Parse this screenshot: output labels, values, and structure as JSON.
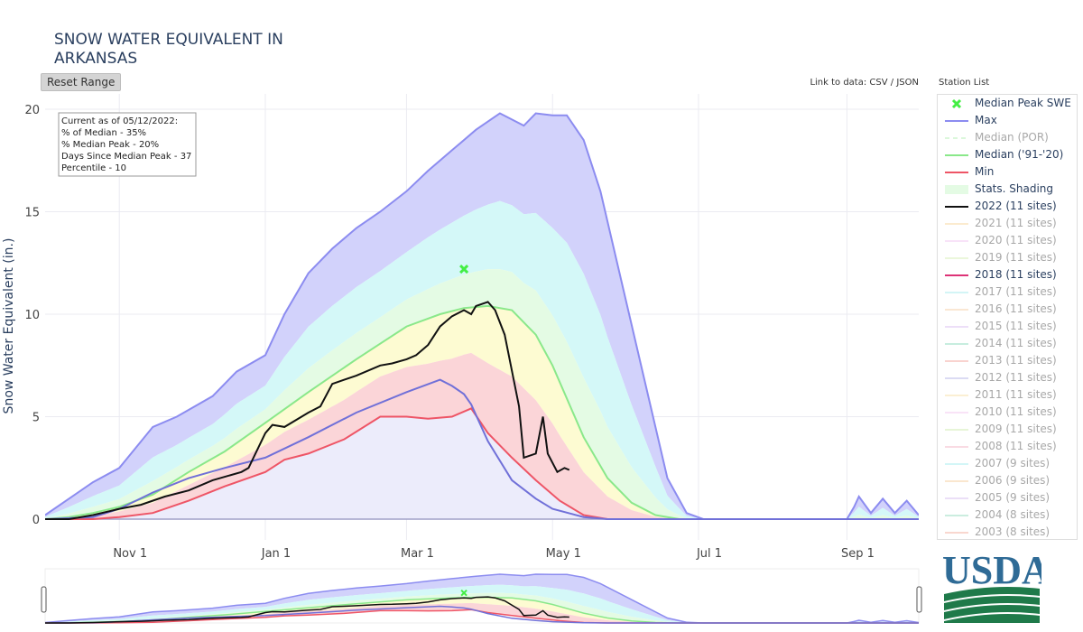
{
  "title": "SNOW WATER EQUIVALENT IN ARKANSAS",
  "reset_label": "Reset Range",
  "link_prefix": "Link to data:",
  "link_csv": "CSV",
  "link_sep": "/",
  "link_json": "JSON",
  "station_list_label": "Station List",
  "logo_text": "USDA",
  "colors": {
    "max": "#8c8cf0",
    "max_fill": "#d2d2fb",
    "median": "#8ae88a",
    "min": "#ee5566",
    "y2022": "#111111",
    "y2018": "#dd3377",
    "peak_marker": "#44ee44",
    "usda_blue": "#2f6b96",
    "usda_green": "#1f7a4a"
  },
  "info_box": [
    "Current as of 05/12/2022:",
    "% of Median - 35%",
    "% Median Peak - 20%",
    "Days Since Median Peak - 37",
    "Percentile - 10"
  ],
  "legend": [
    {
      "label": "Median Peak SWE",
      "symbol": "x-marker",
      "color": "#44ee44",
      "active": true
    },
    {
      "label": "Max",
      "symbol": "line",
      "color": "#8c8cf0",
      "active": true
    },
    {
      "label": "Median (POR)",
      "symbol": "dash",
      "color": "#b8f0b8",
      "active": false
    },
    {
      "label": "Median ('91-'20)",
      "symbol": "line",
      "color": "#8ae88a",
      "active": true
    },
    {
      "label": "Min",
      "symbol": "line",
      "color": "#ee5566",
      "active": true
    },
    {
      "label": "Stats. Shading",
      "symbol": "shade",
      "color": "#e4fbe4",
      "active": true
    },
    {
      "label": "2022 (11 sites)",
      "symbol": "line",
      "color": "#111111",
      "active": true
    },
    {
      "label": "2021 (11 sites)",
      "symbol": "line",
      "color": "#f8d8a0",
      "active": false
    },
    {
      "label": "2020 (11 sites)",
      "symbol": "line",
      "color": "#f2c8f2",
      "active": false
    },
    {
      "label": "2019 (11 sites)",
      "symbol": "line",
      "color": "#d8f0b8",
      "active": false
    },
    {
      "label": "2018 (11 sites)",
      "symbol": "line",
      "color": "#dd3377",
      "active": true
    },
    {
      "label": "2017 (11 sites)",
      "symbol": "line",
      "color": "#a8ecef",
      "active": false
    },
    {
      "label": "2016 (11 sites)",
      "symbol": "line",
      "color": "#f6d0a8",
      "active": false
    },
    {
      "label": "2015 (11 sites)",
      "symbol": "line",
      "color": "#dcc0f2",
      "active": false
    },
    {
      "label": "2014 (11 sites)",
      "symbol": "line",
      "color": "#90dcc0",
      "active": false
    },
    {
      "label": "2013 (11 sites)",
      "symbol": "line",
      "color": "#f4a8a0",
      "active": false
    },
    {
      "label": "2012 (11 sites)",
      "symbol": "line",
      "color": "#b8b8e8",
      "active": false
    },
    {
      "label": "2011 (11 sites)",
      "symbol": "line",
      "color": "#f8e0a8",
      "active": false
    },
    {
      "label": "2010 (11 sites)",
      "symbol": "line",
      "color": "#f4c8f0",
      "active": false
    },
    {
      "label": "2009 (11 sites)",
      "symbol": "line",
      "color": "#d0ecb0",
      "active": false
    },
    {
      "label": "2008 (11 sites)",
      "symbol": "line",
      "color": "#f4b8c8",
      "active": false
    },
    {
      "label": "2007 (9 sites)",
      "symbol": "line",
      "color": "#a8eef0",
      "active": false
    },
    {
      "label": "2006 (9 sites)",
      "symbol": "line",
      "color": "#f6d0a0",
      "active": false
    },
    {
      "label": "2005 (9 sites)",
      "symbol": "line",
      "color": "#d8c0f0",
      "active": false
    },
    {
      "label": "2004 (8 sites)",
      "symbol": "line",
      "color": "#98dcc0",
      "active": false
    },
    {
      "label": "2003 (8 sites)",
      "symbol": "line",
      "color": "#f4b0a0",
      "active": false
    }
  ],
  "chart_data": {
    "type": "line",
    "title": "SNOW WATER EQUIVALENT IN ARKANSAS",
    "ylabel": "Snow Water Equivalent (in.)",
    "xlabel": "",
    "ylim": [
      0,
      21
    ],
    "xlim": [
      "Oct 1",
      "Sep 30"
    ],
    "yticks": [
      0,
      5,
      10,
      15,
      20
    ],
    "xticks": [
      {
        "label": "Nov 1",
        "day": 31
      },
      {
        "label": "Jan 1",
        "day": 92
      },
      {
        "label": "Mar 1",
        "day": 151
      },
      {
        "label": "May 1",
        "day": 212
      },
      {
        "label": "Jul 1",
        "day": 273
      },
      {
        "label": "Sep 1",
        "day": 335
      }
    ],
    "grid": true,
    "legend_position": "right",
    "series": [
      {
        "name": "Max",
        "x": [
          0,
          10,
          20,
          31,
          45,
          55,
          70,
          80,
          92,
          100,
          110,
          120,
          130,
          140,
          151,
          160,
          170,
          180,
          190,
          200,
          205,
          212,
          218,
          225,
          232,
          240,
          250,
          260,
          268,
          275,
          280,
          290,
          335,
          338,
          340,
          345,
          350,
          355,
          360,
          365
        ],
        "values": [
          0.2,
          1,
          1.8,
          2.5,
          4.5,
          5,
          6,
          7.2,
          8,
          10,
          12,
          13.2,
          14.2,
          15,
          16,
          17,
          18,
          19,
          19.8,
          19.2,
          19.8,
          19.7,
          19.7,
          18.5,
          16,
          12,
          7,
          2,
          0.3,
          0,
          0,
          0,
          0,
          0.6,
          1.1,
          0.3,
          1,
          0.3,
          0.9,
          0.2
        ]
      },
      {
        "name": "Median ('91-'20)",
        "x": [
          0,
          10,
          20,
          31,
          45,
          60,
          75,
          92,
          110,
          130,
          151,
          165,
          175,
          185,
          195,
          205,
          212,
          225,
          235,
          245,
          255,
          265,
          275,
          365
        ],
        "values": [
          0,
          0.1,
          0.3,
          0.6,
          1.2,
          2.3,
          3.3,
          4.7,
          6.2,
          7.8,
          9.4,
          10,
          10.3,
          10.4,
          10.2,
          9,
          7.5,
          4,
          2,
          0.8,
          0.2,
          0,
          0,
          0
        ]
      },
      {
        "name": "Min",
        "x": [
          0,
          20,
          31,
          45,
          60,
          75,
          92,
          100,
          110,
          125,
          140,
          151,
          160,
          170,
          178,
          185,
          195,
          205,
          215,
          225,
          235,
          245,
          255,
          365
        ],
        "values": [
          0,
          0,
          0.1,
          0.3,
          0.9,
          1.6,
          2.3,
          2.9,
          3.2,
          3.9,
          5,
          5,
          4.9,
          5,
          5.4,
          4.2,
          3,
          1.9,
          0.9,
          0.2,
          0,
          0,
          0,
          0
        ]
      },
      {
        "name": "2022 (11 sites)",
        "x": [
          0,
          10,
          20,
          31,
          40,
          50,
          60,
          70,
          82,
          85,
          92,
          95,
          100,
          110,
          115,
          120,
          125,
          130,
          140,
          145,
          151,
          155,
          160,
          165,
          170,
          175,
          178,
          180,
          185,
          188,
          192,
          198,
          200,
          205,
          208,
          210,
          214,
          217,
          219
        ],
        "values": [
          0,
          0,
          0.2,
          0.5,
          0.7,
          1.1,
          1.4,
          1.9,
          2.3,
          2.5,
          4.2,
          4.6,
          4.5,
          5.2,
          5.5,
          6.6,
          6.8,
          7,
          7.5,
          7.6,
          7.8,
          8,
          8.5,
          9.4,
          9.9,
          10.2,
          10,
          10.4,
          10.6,
          10.2,
          9,
          5.5,
          3,
          3.2,
          5,
          3.2,
          2.3,
          2.5,
          2.4
        ]
      },
      {
        "name": "2018 (11 sites)",
        "x": [
          0,
          20,
          31,
          45,
          60,
          75,
          92,
          110,
          130,
          151,
          165,
          170,
          175,
          178,
          185,
          195,
          205,
          212,
          225,
          235,
          245,
          365
        ],
        "values": [
          0,
          0.1,
          0.5,
          1.3,
          2,
          2.5,
          3,
          4,
          5.2,
          6.2,
          6.8,
          6.5,
          6.1,
          5.6,
          3.8,
          1.9,
          1,
          0.5,
          0.1,
          0,
          0,
          0
        ]
      }
    ],
    "markers": [
      {
        "name": "Median Peak SWE",
        "x": 175,
        "y": 12.2
      }
    ],
    "range_slider": true
  }
}
